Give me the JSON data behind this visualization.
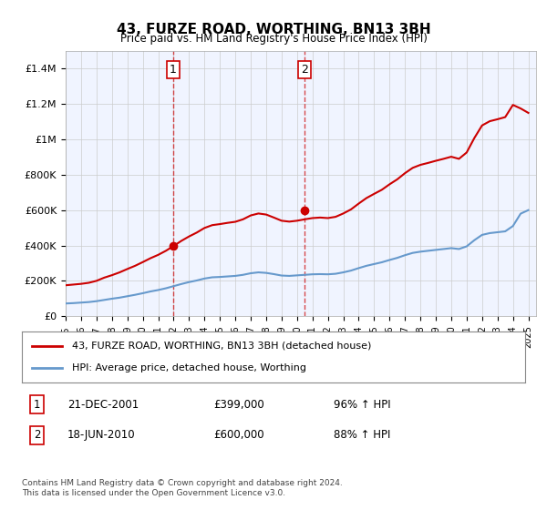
{
  "title": "43, FURZE ROAD, WORTHING, BN13 3BH",
  "subtitle": "Price paid vs. HM Land Registry's House Price Index (HPI)",
  "ylabel": "",
  "xlim_start": 1995.0,
  "xlim_end": 2025.5,
  "ylim": [
    0,
    1500000
  ],
  "yticks": [
    0,
    200000,
    400000,
    600000,
    800000,
    1000000,
    1200000,
    1400000
  ],
  "ytick_labels": [
    "£0",
    "£200K",
    "£400K",
    "£600K",
    "£800K",
    "£1M",
    "£1.2M",
    "£1.4M"
  ],
  "transaction1_x": 2001.97,
  "transaction1_y": 399000,
  "transaction1_label": "1",
  "transaction2_x": 2010.47,
  "transaction2_y": 600000,
  "transaction2_label": "2",
  "legend_line1": "43, FURZE ROAD, WORTHING, BN13 3BH (detached house)",
  "legend_line2": "HPI: Average price, detached house, Worthing",
  "table_row1": "1     21-DEC-2001          £399,000          96% ↑ HPI",
  "table_row2": "2     18-JUN-2010          £600,000          88% ↑ HPI",
  "footnote": "Contains HM Land Registry data © Crown copyright and database right 2024.\nThis data is licensed under the Open Government Licence v3.0.",
  "red_color": "#cc0000",
  "blue_color": "#6699cc",
  "background_color": "#ffffff",
  "plot_bg_color": "#f0f4ff",
  "grid_color": "#cccccc",
  "vline_color": "#cc0000",
  "hpi_line": {
    "years": [
      1995,
      1995.5,
      1996,
      1996.5,
      1997,
      1997.5,
      1998,
      1998.5,
      1999,
      1999.5,
      2000,
      2000.5,
      2001,
      2001.5,
      2002,
      2002.5,
      2003,
      2003.5,
      2004,
      2004.5,
      2005,
      2005.5,
      2006,
      2006.5,
      2007,
      2007.5,
      2008,
      2008.5,
      2009,
      2009.5,
      2010,
      2010.5,
      2011,
      2011.5,
      2012,
      2012.5,
      2013,
      2013.5,
      2014,
      2014.5,
      2015,
      2015.5,
      2016,
      2016.5,
      2017,
      2017.5,
      2018,
      2018.5,
      2019,
      2019.5,
      2020,
      2020.5,
      2021,
      2021.5,
      2022,
      2022.5,
      2023,
      2023.5,
      2024,
      2024.5,
      2025
    ],
    "values": [
      72000,
      74000,
      77000,
      80000,
      85000,
      92000,
      99000,
      105000,
      113000,
      121000,
      130000,
      140000,
      148000,
      158000,
      170000,
      182000,
      193000,
      202000,
      213000,
      220000,
      222000,
      225000,
      228000,
      234000,
      243000,
      248000,
      245000,
      238000,
      230000,
      228000,
      231000,
      234000,
      237000,
      238000,
      237000,
      240000,
      248000,
      258000,
      272000,
      285000,
      295000,
      305000,
      318000,
      330000,
      345000,
      358000,
      365000,
      370000,
      375000,
      380000,
      385000,
      380000,
      395000,
      430000,
      460000,
      470000,
      475000,
      480000,
      510000,
      580000,
      600000
    ]
  },
  "property_line": {
    "years": [
      1995,
      1995.5,
      1996,
      1996.5,
      1997,
      1997.5,
      1998,
      1998.5,
      1999,
      1999.5,
      2000,
      2000.5,
      2001,
      2001.5,
      2002,
      2002.5,
      2003,
      2003.5,
      2004,
      2004.5,
      2005,
      2005.5,
      2006,
      2006.5,
      2007,
      2007.5,
      2008,
      2008.5,
      2009,
      2009.5,
      2010,
      2010.5,
      2011,
      2011.5,
      2012,
      2012.5,
      2013,
      2013.5,
      2014,
      2014.5,
      2015,
      2015.5,
      2016,
      2016.5,
      2017,
      2017.5,
      2018,
      2018.5,
      2019,
      2019.5,
      2020,
      2020.5,
      2021,
      2021.5,
      2022,
      2022.5,
      2023,
      2023.5,
      2024,
      2024.5,
      2025
    ],
    "values": [
      175000,
      179000,
      183000,
      189000,
      200000,
      218000,
      232000,
      248000,
      267000,
      285000,
      306000,
      328000,
      347000,
      370000,
      397000,
      426000,
      451000,
      473000,
      499000,
      515000,
      521000,
      528000,
      534000,
      548000,
      570000,
      581000,
      575000,
      558000,
      540000,
      535000,
      540000,
      548000,
      555000,
      558000,
      555000,
      562000,
      581000,
      604000,
      637000,
      668000,
      692000,
      715000,
      746000,
      774000,
      809000,
      839000,
      856000,
      867000,
      879000,
      890000,
      902000,
      890000,
      926000,
      1008000,
      1079000,
      1103000,
      1114000,
      1126000,
      1195000,
      1175000,
      1150000
    ]
  }
}
